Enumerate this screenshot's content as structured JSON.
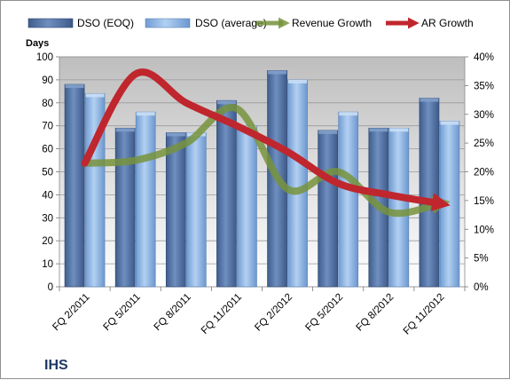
{
  "chart_data": {
    "type": "bar",
    "company": "IHS",
    "categories": [
      "FQ 2/2011",
      "FQ 5/2011",
      "FQ 8/2011",
      "FQ 11/2011",
      "FQ 2/2012",
      "FQ 5/2012",
      "FQ 8/2012",
      "FQ 11/2012"
    ],
    "ylabel": "Days",
    "ylim": [
      0,
      100
    ],
    "yticks": [
      0,
      10,
      20,
      30,
      40,
      50,
      60,
      70,
      80,
      90,
      100
    ],
    "y2lim": [
      0,
      40
    ],
    "y2ticks": [
      "0%",
      "5%",
      "10%",
      "15%",
      "20%",
      "25%",
      "30%",
      "35%",
      "40%"
    ],
    "y2_unit": "percent",
    "grid": true,
    "legend_position": "top",
    "series": [
      {
        "name": "DSO (EOQ)",
        "type": "bar",
        "axis": "left",
        "color": "#4f6f9e",
        "values": [
          88,
          69,
          67,
          81,
          94,
          68,
          69,
          82
        ]
      },
      {
        "name": "DSO (average)",
        "type": "bar",
        "axis": "left",
        "color": "#8fb4e3",
        "values": [
          84,
          76,
          67,
          70,
          90,
          76,
          69,
          72
        ]
      },
      {
        "name": "Revenue Growth",
        "type": "line",
        "axis": "right",
        "color": "#77933c",
        "values": [
          21.5,
          22,
          25,
          31,
          17,
          20,
          13,
          14.5
        ]
      },
      {
        "name": "AR Growth",
        "type": "line",
        "axis": "right",
        "color": "#c0262d",
        "values": [
          21.5,
          37,
          32,
          28,
          23.5,
          18,
          16,
          14.5
        ]
      }
    ]
  }
}
